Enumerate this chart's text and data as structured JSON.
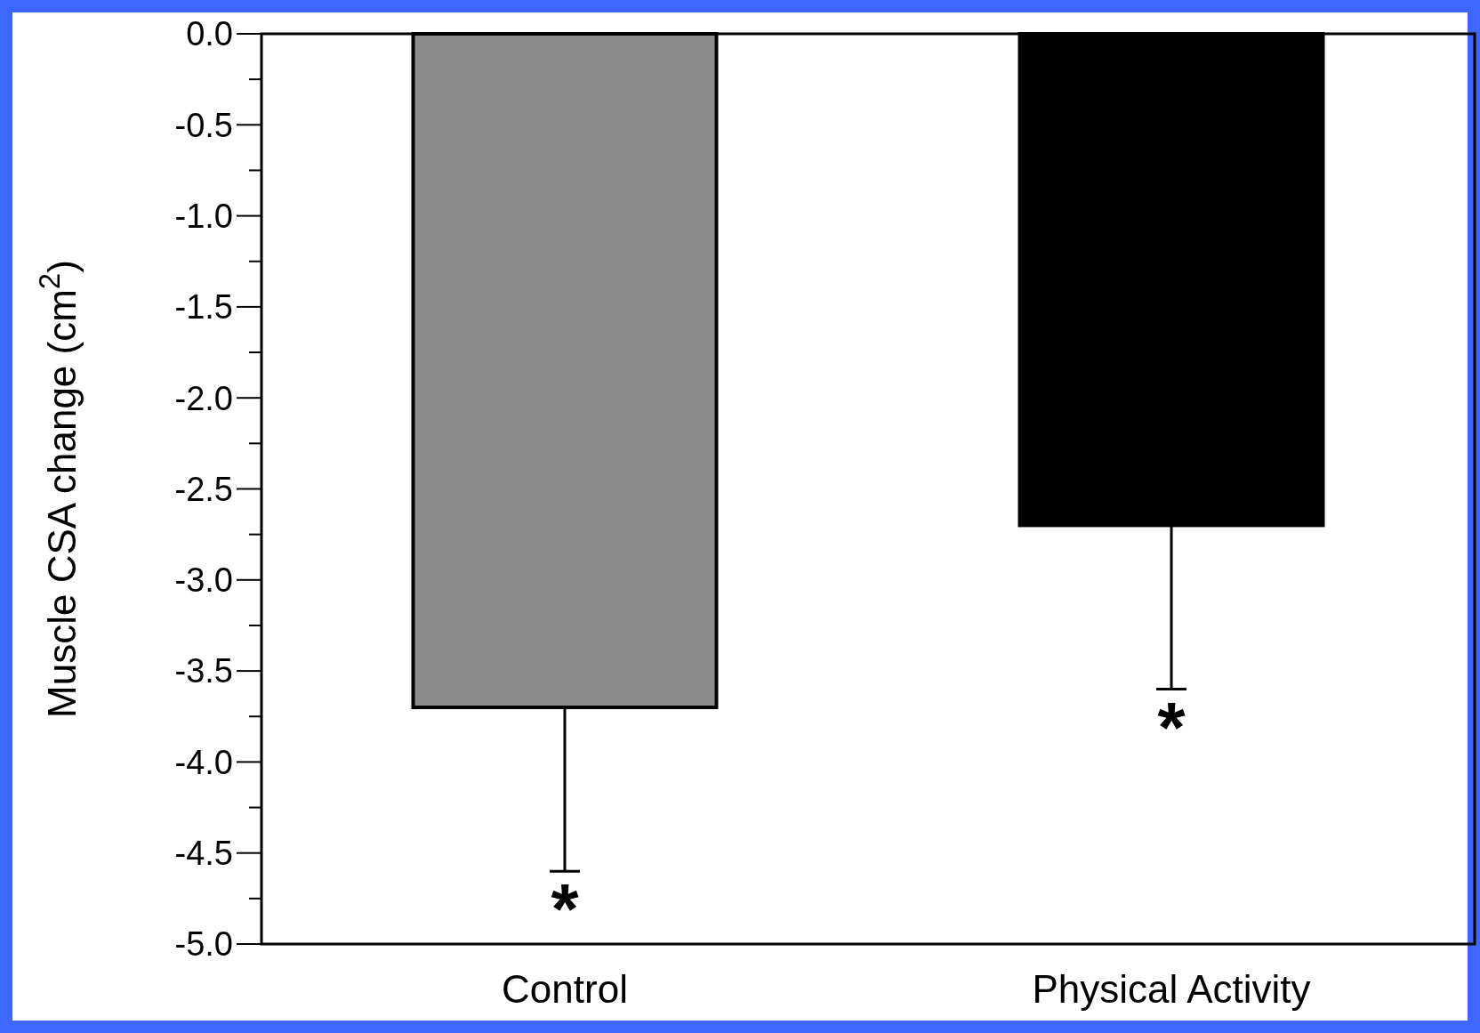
{
  "chart_data": {
    "type": "bar",
    "ylabel": "Muscle CSA change (cm$^{2}$)",
    "categories": [
      "Control",
      "Physical Activity"
    ],
    "values": [
      -3.7,
      -2.7
    ],
    "colors": [
      "#8c8c8c",
      "#000000"
    ],
    "errors": [
      [
        -4.6,
        -3.7
      ],
      [
        -3.6,
        -2.7
      ]
    ],
    "ylim": [
      -5,
      0
    ],
    "yticks": [
      {
        "value": 0,
        "label": "0.0"
      },
      {
        "value": -0.25,
        "label": null
      },
      {
        "value": -0.5,
        "label": "-0.5"
      },
      {
        "value": -0.75,
        "label": null
      },
      {
        "value": -1,
        "label": "-1.0"
      },
      {
        "value": -1.25,
        "label": null
      },
      {
        "value": -1.5,
        "label": "-1.5"
      },
      {
        "value": -1.75,
        "label": null
      },
      {
        "value": -2,
        "label": "-2.0"
      },
      {
        "value": -2.25,
        "label": null
      },
      {
        "value": -2.5,
        "label": "-2.5"
      },
      {
        "value": -2.75,
        "label": null
      },
      {
        "value": -3,
        "label": "-3.0"
      },
      {
        "value": -3.25,
        "label": null
      },
      {
        "value": -3.5,
        "label": "-3.5"
      },
      {
        "value": -3.75,
        "label": null
      },
      {
        "value": -4,
        "label": "-4.0"
      },
      {
        "value": -4.25,
        "label": null
      },
      {
        "value": -4.5,
        "label": "-4.5"
      },
      {
        "value": -4.75,
        "label": null
      },
      {
        "value": -5,
        "label": "-5.0"
      }
    ],
    "annotations": [
      "*",
      "*"
    ],
    "grid": false
  }
}
